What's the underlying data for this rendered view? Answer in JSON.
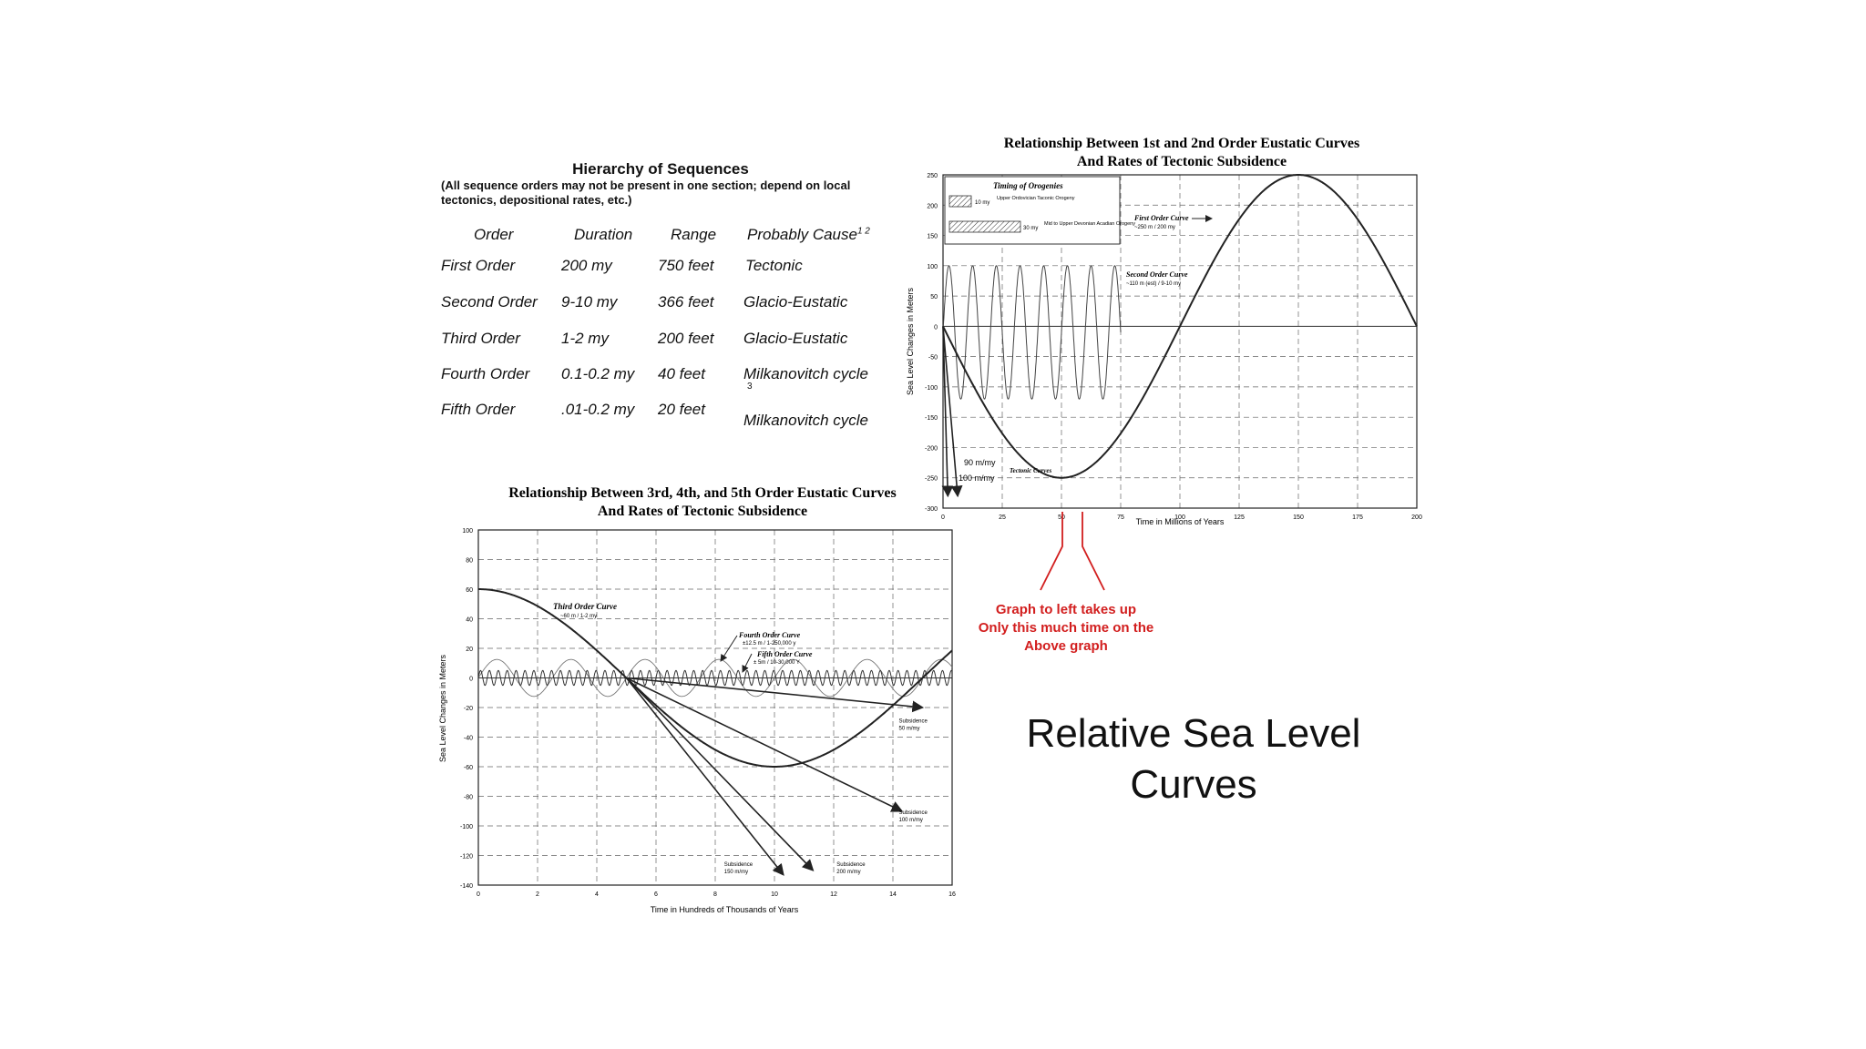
{
  "hierarchy": {
    "title": "Hierarchy of Sequences",
    "note": "(All sequence orders may not be present in one section; depend on local tectonics, depositional rates, etc.)",
    "columns": [
      "Order",
      "Duration",
      "Range",
      "Probably Cause"
    ],
    "cause_superscript": "1  2",
    "rows": [
      {
        "order": "First Order",
        "duration": "200 my",
        "range": "750 feet",
        "cause": "Tectonic"
      },
      {
        "order": "Second Order",
        "duration": "9-10 my",
        "range": "366 feet",
        "cause": "Glacio-Eustatic"
      },
      {
        "order": "Third Order",
        "duration": "1-2 my",
        "range": "200 feet",
        "cause": "Glacio-Eustatic"
      },
      {
        "order": "Fourth Order",
        "duration": "0.1-0.2 my",
        "range": "40 feet",
        "cause": "Milkanovitch cycle",
        "cause_note": "3"
      },
      {
        "order": "Fifth Order",
        "duration": ".01-0.2 my",
        "range": "20 feet",
        "cause": "Milkanovitch cycle"
      }
    ]
  },
  "page_title_line1": "Relative Sea Level",
  "page_title_line2": "Curves",
  "annotation": {
    "line1": "Graph to left takes up",
    "line2": "Only this much time on the",
    "line3": "Above graph",
    "color": "#d21e1e"
  },
  "chart_data": [
    {
      "type": "line",
      "title_line1": "Relationship Between 1st and 2nd Order Eustatic Curves",
      "title_line2": "And Rates of Tectonic Subsidence",
      "xlabel": "Time in Millions of Years",
      "ylabel": "Sea Level Changes in Meters",
      "xlim": [
        0,
        200
      ],
      "ylim": [
        -300,
        250
      ],
      "xticks": [
        0,
        25,
        50,
        75,
        100,
        125,
        150,
        175,
        200
      ],
      "yticks": [
        250,
        200,
        150,
        100,
        50,
        0,
        -50,
        -100,
        -150,
        -200,
        -250,
        -300
      ],
      "grid": true,
      "series": [
        {
          "name": "First Order Curve",
          "amplitude": 250,
          "period": 200,
          "note": "~250 m / 200 my"
        },
        {
          "name": "Second Order Curve",
          "amplitude": 110,
          "period": 10,
          "x_range": [
            0,
            75
          ],
          "note": "~110 m (est) / 9-10 my"
        }
      ],
      "subsidence": [
        {
          "label": "90 m/my",
          "rate": -90
        },
        {
          "label": "100 m/my",
          "rate": -100
        }
      ],
      "subsidence_caption": "Tectonic Curves",
      "timing": {
        "heading": "Timing of Orogenies",
        "items": [
          {
            "duration": "10 my",
            "name": "Upper Ordovician Taconic Orogeny"
          },
          {
            "duration": "30 my",
            "name": "Mid to Upper Devonian Acadian Orogeny"
          }
        ]
      }
    },
    {
      "type": "line",
      "title_line1": "Relationship Between 3rd, 4th, and 5th Order Eustatic Curves",
      "title_line2": "And Rates of Tectonic Subsidence",
      "xlabel": "Time in Hundreds of Thousands of Years",
      "ylabel": "Sea Level Changes in Meters",
      "xlim": [
        0,
        16
      ],
      "ylim": [
        -140,
        100
      ],
      "xticks": [
        0,
        2,
        4,
        6,
        8,
        10,
        12,
        14,
        16
      ],
      "yticks": [
        100,
        80,
        60,
        40,
        20,
        0,
        -20,
        -40,
        -60,
        -80,
        -100,
        -120,
        -140
      ],
      "grid": true,
      "series": [
        {
          "name": "Third Order Curve",
          "amplitude": 60,
          "period": 20,
          "note": "~60 m / 1-2 my"
        },
        {
          "name": "Fourth Order Curve",
          "amplitude": 12.5,
          "period": 2.5,
          "note": "±12.5 m / 1-250,000 y"
        },
        {
          "name": "Fifth Order Curve",
          "amplitude": 5,
          "period": 0.3,
          "note": "± 5m / 10-30,000 Y"
        }
      ],
      "subsidence": [
        {
          "label": "Subsidence 50 m/my",
          "rate": -50
        },
        {
          "label": "Subsidence 100 m/my",
          "rate": -100
        },
        {
          "label": "Subsidence 150 m/my",
          "rate": -150
        },
        {
          "label": "Subsidence 200 m/my",
          "rate": -200
        }
      ]
    }
  ]
}
